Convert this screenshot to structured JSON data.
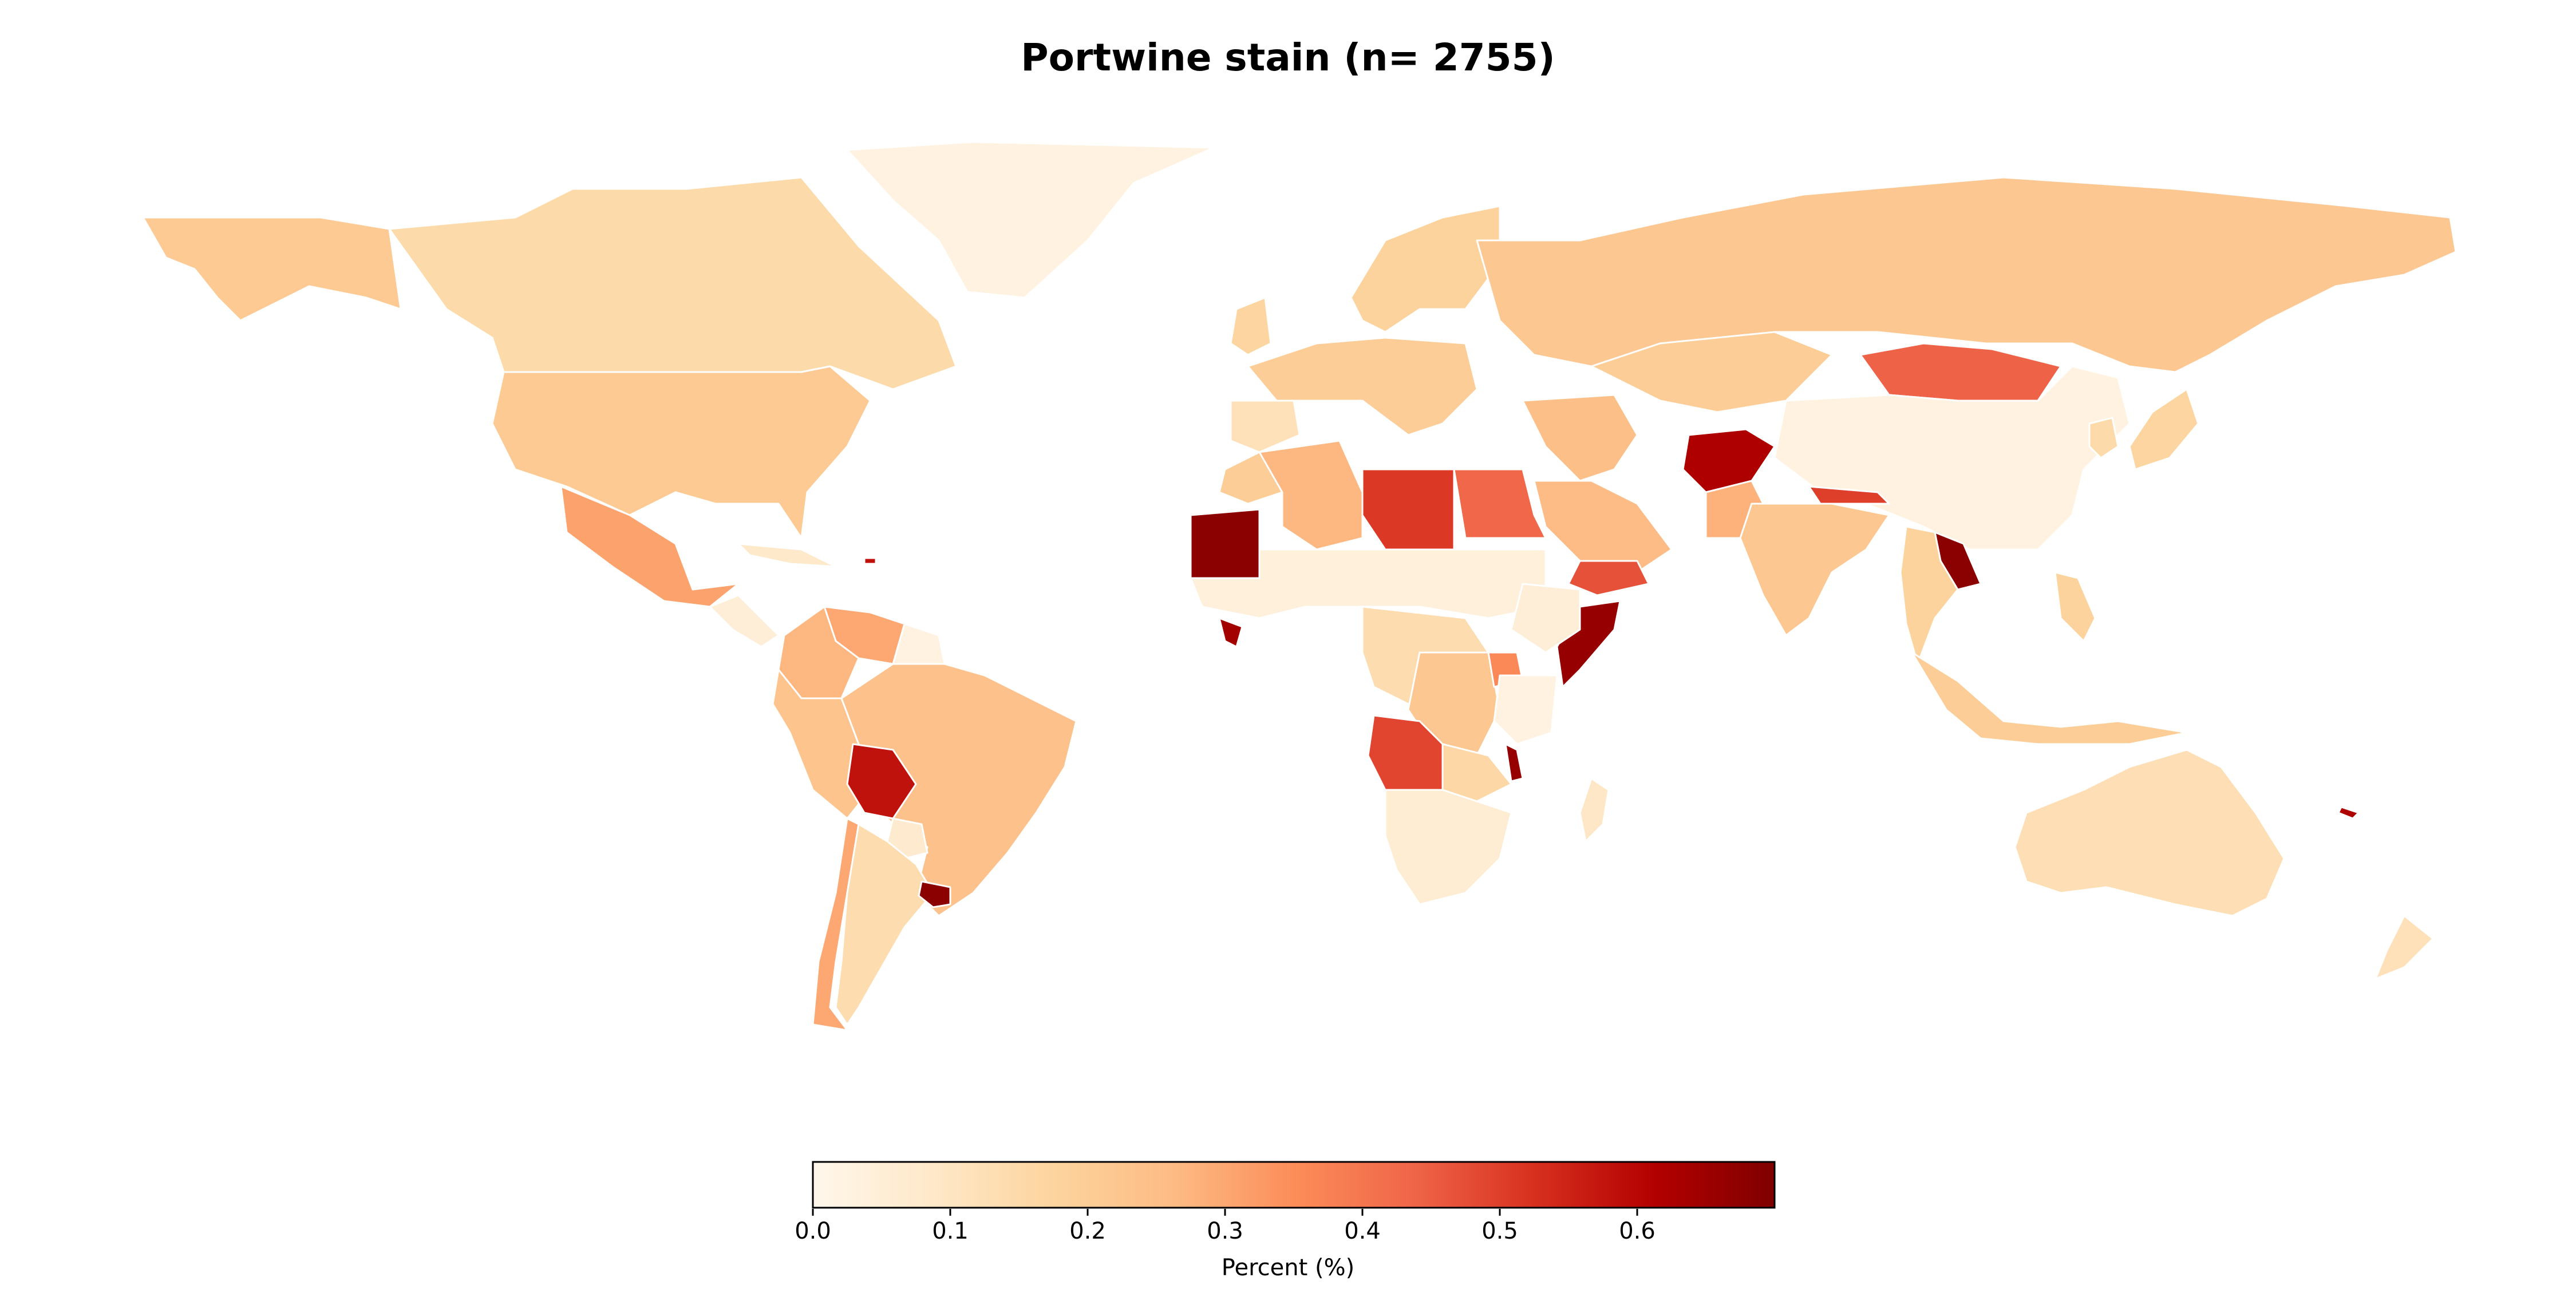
{
  "title": "Portwine stain (n= 2755)",
  "colorbar": {
    "label": "Percent (%)",
    "min": 0.0,
    "max": 0.7,
    "colormap": "OrRd",
    "stops": [
      "#fff7ec",
      "#fee8c8",
      "#fdd49e",
      "#fdbb84",
      "#fc8d59",
      "#ef6548",
      "#d7301f",
      "#b30000",
      "#7f0000"
    ],
    "ticks": [
      {
        "value": 0.0,
        "label": "0.0"
      },
      {
        "value": 0.1,
        "label": "0.1"
      },
      {
        "value": 0.2,
        "label": "0.2"
      },
      {
        "value": 0.3,
        "label": "0.3"
      },
      {
        "value": 0.4,
        "label": "0.4"
      },
      {
        "value": 0.5,
        "label": "0.5"
      },
      {
        "value": 0.6,
        "label": "0.6"
      }
    ]
  },
  "regions": [
    {
      "name": "Greenland",
      "value": 0.03
    },
    {
      "name": "Canada",
      "value": 0.15
    },
    {
      "name": "Alaska",
      "value": 0.21
    },
    {
      "name": "United States",
      "value": 0.21
    },
    {
      "name": "Mexico",
      "value": 0.31
    },
    {
      "name": "Central America",
      "value": 0.05
    },
    {
      "name": "Cuba",
      "value": 0.08
    },
    {
      "name": "Puerto Rico",
      "value": 0.58
    },
    {
      "name": "Venezuela",
      "value": 0.3
    },
    {
      "name": "Colombia",
      "value": 0.27
    },
    {
      "name": "Guyana",
      "value": 0.03
    },
    {
      "name": "Ecuador/Peru",
      "value": 0.23
    },
    {
      "name": "Brazil",
      "value": 0.24
    },
    {
      "name": "Bolivia",
      "value": 0.58
    },
    {
      "name": "Paraguay",
      "value": 0.07
    },
    {
      "name": "Chile",
      "value": 0.3
    },
    {
      "name": "Argentina",
      "value": 0.14
    },
    {
      "name": "Uruguay",
      "value": 0.68
    },
    {
      "name": "Western Europe",
      "value": 0.2
    },
    {
      "name": "United Kingdom",
      "value": 0.17
    },
    {
      "name": "Iberia",
      "value": 0.12
    },
    {
      "name": "Scandinavia",
      "value": 0.18
    },
    {
      "name": "Russia",
      "value": 0.22
    },
    {
      "name": "Mongolia",
      "value": 0.44
    },
    {
      "name": "China",
      "value": 0.03
    },
    {
      "name": "Japan",
      "value": 0.17
    },
    {
      "name": "Korea",
      "value": 0.15
    },
    {
      "name": "Kazakhstan",
      "value": 0.2
    },
    {
      "name": "Middle East",
      "value": 0.25
    },
    {
      "name": "Saudi Arabia",
      "value": 0.26
    },
    {
      "name": "Yemen",
      "value": 0.47
    },
    {
      "name": "Afghanistan",
      "value": 0.62
    },
    {
      "name": "Pakistan",
      "value": 0.28
    },
    {
      "name": "India",
      "value": 0.22
    },
    {
      "name": "Nepal",
      "value": 0.5
    },
    {
      "name": "Laos",
      "value": 0.68
    },
    {
      "name": "Southeast Asia",
      "value": 0.18
    },
    {
      "name": "Indonesia",
      "value": 0.2
    },
    {
      "name": "Philippines",
      "value": 0.18
    },
    {
      "name": "Australia",
      "value": 0.13
    },
    {
      "name": "New Zealand",
      "value": 0.12
    },
    {
      "name": "Fiji",
      "value": 0.62
    },
    {
      "name": "Morocco",
      "value": 0.2
    },
    {
      "name": "Algeria",
      "value": 0.27
    },
    {
      "name": "Libya",
      "value": 0.51
    },
    {
      "name": "Egypt",
      "value": 0.43
    },
    {
      "name": "Mauritania",
      "value": 0.68
    },
    {
      "name": "Sahel",
      "value": 0.04
    },
    {
      "name": "Liberia",
      "value": 0.64
    },
    {
      "name": "Central Africa",
      "value": 0.14
    },
    {
      "name": "DR Congo",
      "value": 0.22
    },
    {
      "name": "Uganda",
      "value": 0.36
    },
    {
      "name": "Somalia",
      "value": 0.66
    },
    {
      "name": "Ethiopia",
      "value": 0.05
    },
    {
      "name": "Kenya/Tanzania",
      "value": 0.03
    },
    {
      "name": "Angola",
      "value": 0.49
    },
    {
      "name": "Zambia/Zimbabwe",
      "value": 0.16
    },
    {
      "name": "Malawi",
      "value": 0.66
    },
    {
      "name": "Southern Africa",
      "value": 0.06
    },
    {
      "name": "Madagascar",
      "value": 0.09
    }
  ]
}
